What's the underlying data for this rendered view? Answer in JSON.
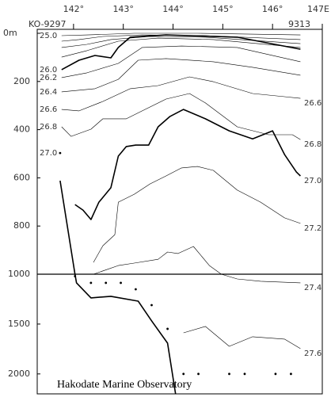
{
  "chart_data": [
    {
      "type": "contour",
      "start_station": "KO-9297",
      "end_station": "9313",
      "color": "#000000",
      "xlim": [
        141.27,
        147
      ],
      "xticks": [
        {
          "value": 142,
          "label": "142°"
        },
        {
          "value": 143,
          "label": "143°"
        },
        {
          "value": 144,
          "label": "144°"
        },
        {
          "value": 145,
          "label": "145°"
        },
        {
          "value": 146,
          "label": "146°"
        },
        {
          "value": 147,
          "label": "147E"
        }
      ],
      "ylim": [
        0,
        1000
      ],
      "yticks": [
        {
          "value": 0,
          "label": "0m"
        },
        200,
        400,
        600,
        800,
        1000
      ],
      "series": [
        {
          "name": "25.0",
          "label_at": "left",
          "x": [
            141.76,
            142.27,
            143.22,
            144.49,
            146.56
          ],
          "values": [
            10,
            7,
            0,
            0,
            7
          ]
        },
        {
          "x": [
            141.76,
            142.11,
            142.59,
            143.38,
            144.65,
            146.56
          ],
          "values": [
            33,
            26,
            13,
            7,
            10,
            26
          ]
        },
        {
          "x": [
            141.76,
            142.27,
            142.75,
            143.54,
            144.65,
            146.56
          ],
          "values": [
            59,
            46,
            26,
            13,
            16,
            43
          ]
        },
        {
          "x": [
            141.76,
            142.27,
            142.9,
            143.7,
            144.81,
            146.56
          ],
          "values": [
            99,
            72,
            33,
            20,
            26,
            59
          ]
        },
        {
          "name": "26.0",
          "label_at": "left",
          "bold": true,
          "x": [
            141.76,
            142.11,
            142.43,
            142.75,
            142.9,
            143.14,
            143.86,
            145.29,
            146.56
          ],
          "values": [
            151,
            112,
            92,
            102,
            59,
            16,
            7,
            16,
            66
          ]
        },
        {
          "name": "26.2",
          "label_at": "left",
          "x": [
            141.76,
            142.27,
            142.9,
            143.38,
            144.17,
            145.29,
            146.56
          ],
          "values": [
            184,
            164,
            125,
            59,
            53,
            59,
            118
          ]
        },
        {
          "name": "26.4",
          "label_at": "left",
          "x": [
            141.76,
            142.43,
            142.9,
            143.3,
            143.86,
            144.81,
            145.6,
            146.56
          ],
          "values": [
            243,
            230,
            191,
            112,
            105,
            118,
            141,
            174
          ]
        },
        {
          "name": "26.6",
          "label_at": "both",
          "x": [
            141.76,
            142.11,
            142.59,
            143.14,
            143.7,
            144.33,
            144.81,
            145.6,
            146.24,
            146.56
          ],
          "values": [
            316,
            322,
            283,
            230,
            217,
            181,
            201,
            250,
            263,
            270
          ]
        },
        {
          "name": "26.8",
          "label_at": "both",
          "x": [
            141.76,
            141.95,
            142.35,
            142.59,
            143.06,
            143.38,
            143.86,
            144.33,
            144.65,
            145.29,
            145.92,
            146.4,
            146.56
          ],
          "values": [
            388,
            428,
            398,
            355,
            355,
            322,
            273,
            250,
            289,
            388,
            421,
            421,
            441
          ]
        },
        {
          "name": "27.0",
          "label_at": "left",
          "style": "dots",
          "x": [
            141.73
          ],
          "values": [
            497
          ]
        },
        {
          "name": "27.0",
          "label_at": "right",
          "bold": true,
          "x": [
            142.03,
            142.19,
            142.35,
            142.51,
            142.75,
            142.9,
            143.06,
            143.25,
            143.51,
            143.7,
            143.94,
            144.21,
            144.65,
            145.13,
            145.6,
            146.0,
            146.24,
            146.48,
            146.56
          ],
          "values": [
            711,
            734,
            773,
            701,
            641,
            510,
            470,
            464,
            464,
            388,
            345,
            316,
            355,
            405,
            438,
            405,
            503,
            576,
            592
          ]
        },
        {
          "name": "27.2",
          "label_at": "right",
          "x": [
            142.4,
            142.59,
            142.83,
            142.9,
            143.22,
            143.54,
            143.86,
            144.17,
            144.49,
            144.81,
            145.29,
            145.76,
            146.24,
            146.56
          ],
          "values": [
            951,
            882,
            836,
            701,
            668,
            625,
            592,
            559,
            553,
            569,
            651,
            701,
            766,
            789
          ]
        },
        {
          "x": [
            142.4,
            142.9,
            143.22,
            143.7,
            143.89,
            144.1,
            144.41,
            144.73,
            144.97
          ],
          "values": [
            1000,
            964,
            954,
            938,
            908,
            914,
            885,
            964,
            1000
          ]
        },
        {
          "bold": true,
          "x": [
            141.73,
            142.03
          ],
          "values": [
            612,
            1000
          ]
        }
      ]
    },
    {
      "type": "contour",
      "credit": "Hakodate Marine Observatory",
      "color": "#000000",
      "xlim": [
        141.27,
        147
      ],
      "ylim": [
        1000,
        2200
      ],
      "yticks": [
        1500,
        2000
      ],
      "series": [
        {
          "name": "27.4",
          "label_at": "right",
          "x": [
            144.97,
            145.29,
            145.76,
            146.56
          ],
          "values": [
            1000,
            1048,
            1071,
            1087
          ]
        },
        {
          "name": "27.6",
          "label_at": "right",
          "x": [
            144.21,
            144.65,
            145.13,
            145.6,
            146.24,
            146.56
          ],
          "values": [
            1588,
            1524,
            1723,
            1627,
            1651,
            1746
          ]
        },
        {
          "bold": true,
          "x": [
            142.03,
            142.06,
            142.35,
            142.75,
            143.3,
            143.57,
            143.89,
            144.05
          ],
          "values": [
            1000,
            1087,
            1238,
            1222,
            1270,
            1468,
            1691,
            2199
          ]
        },
        {
          "style": "dots",
          "x": [
            142.03,
            142.35,
            142.65,
            142.95,
            143.25,
            143.57,
            143.89,
            144.21,
            144.51,
            145.13,
            145.44,
            146.06,
            146.37
          ],
          "values": [
            1020,
            1087,
            1087,
            1087,
            1151,
            1310,
            1548,
            2000,
            2000,
            2000,
            2000,
            2000,
            2000
          ]
        }
      ]
    }
  ]
}
